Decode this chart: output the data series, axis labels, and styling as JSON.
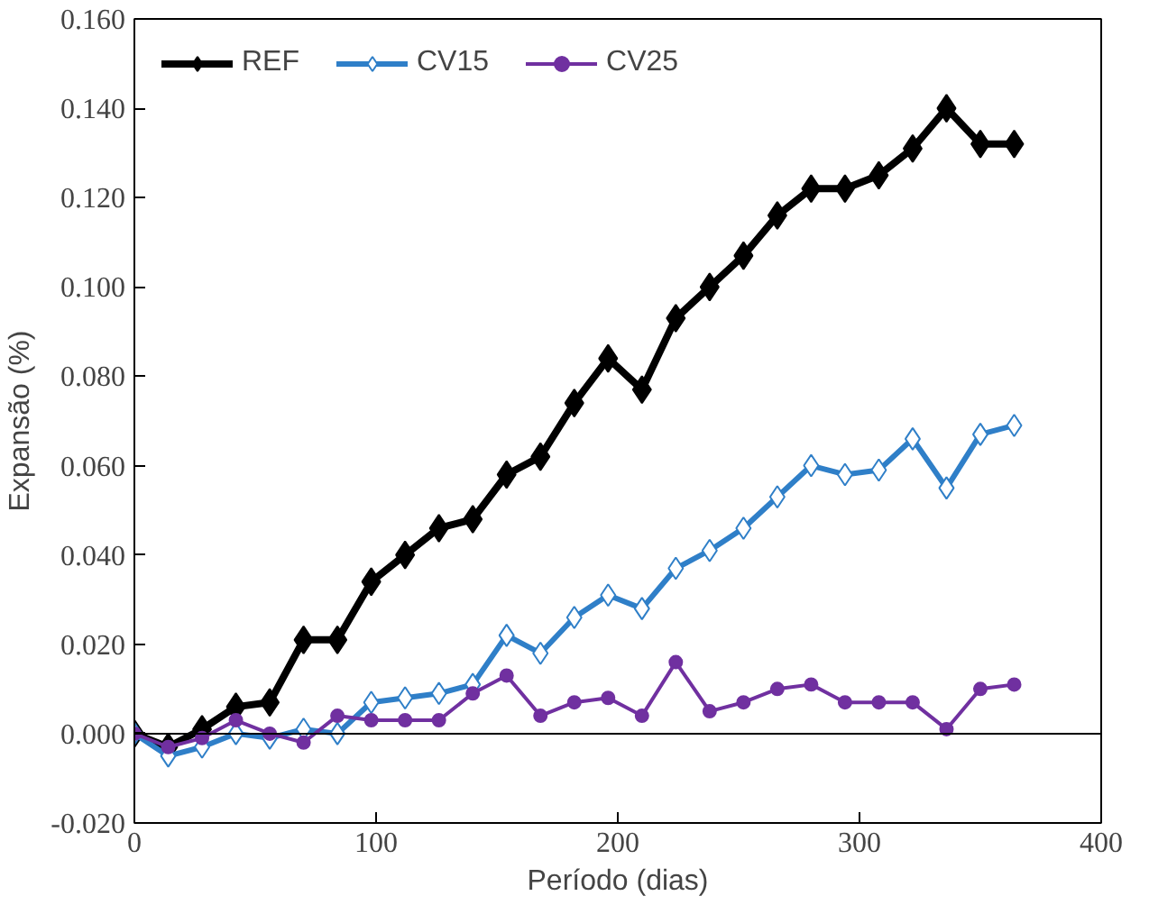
{
  "chart_data": {
    "type": "line",
    "xlabel": "Período (dias)",
    "ylabel": "Expansão (%)",
    "x": [
      0,
      14,
      28,
      42,
      56,
      70,
      84,
      98,
      112,
      126,
      140,
      154,
      168,
      182,
      196,
      210,
      224,
      238,
      252,
      266,
      280,
      294,
      308,
      322,
      336,
      350,
      364
    ],
    "series": [
      {
        "name": "REF",
        "color": "#000000",
        "marker": "diamond",
        "values": [
          0,
          -0.003,
          0.001,
          0.006,
          0.007,
          0.021,
          0.021,
          0.034,
          0.04,
          0.046,
          0.048,
          0.058,
          0.062,
          0.074,
          0.084,
          0.077,
          0.093,
          0.1,
          0.107,
          0.116,
          0.122,
          0.122,
          0.125,
          0.131,
          0.14,
          0.132,
          0.132
        ]
      },
      {
        "name": "CV15",
        "color": "#2f7fc8",
        "marker": "diamond_open",
        "values": [
          0,
          -0.005,
          -0.003,
          0.0,
          -0.001,
          0.001,
          0.0,
          0.007,
          0.008,
          0.009,
          0.011,
          0.022,
          0.018,
          0.026,
          0.031,
          0.028,
          0.037,
          0.041,
          0.046,
          0.053,
          0.06,
          0.058,
          0.059,
          0.066,
          0.055,
          0.067,
          0.069
        ]
      },
      {
        "name": "CV25",
        "color": "#7030a0",
        "marker": "circle",
        "values": [
          0,
          -0.003,
          -0.001,
          0.003,
          0.0,
          -0.002,
          0.004,
          0.003,
          0.003,
          0.003,
          0.009,
          0.013,
          0.004,
          0.007,
          0.008,
          0.004,
          0.016,
          0.005,
          0.007,
          0.01,
          0.011,
          0.007,
          0.007,
          0.007,
          0.001,
          0.01,
          0.011
        ]
      }
    ],
    "xlim": [
      0,
      400
    ],
    "xticks": [
      0,
      100,
      200,
      300,
      400
    ],
    "ylim": [
      -0.02,
      0.16
    ],
    "yticks": [
      {
        "value": -0.02,
        "label": "-0.020"
      },
      {
        "value": 0,
        "label": "0.000"
      },
      {
        "value": 0.02,
        "label": "0.020"
      },
      {
        "value": 0.04,
        "label": "0.040"
      },
      {
        "value": 0.06,
        "label": "0.060"
      },
      {
        "value": 0.08,
        "label": "0.080"
      },
      {
        "value": 0.1,
        "label": "0.100"
      },
      {
        "value": 0.12,
        "label": "0.120"
      },
      {
        "value": 0.14,
        "label": "0.140"
      },
      {
        "value": 0.16,
        "label": "0.160"
      }
    ],
    "ref_lines": [
      {
        "axis": "y",
        "value": 0,
        "color": "#000000"
      }
    ],
    "grid": false,
    "legend": "top left",
    "line_style": "solid"
  }
}
